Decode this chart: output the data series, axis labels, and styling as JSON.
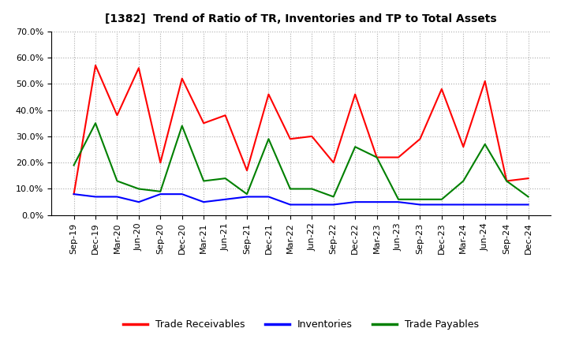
{
  "title": "[1382]  Trend of Ratio of TR, Inventories and TP to Total Assets",
  "x_labels": [
    "Sep-19",
    "Dec-19",
    "Mar-20",
    "Jun-20",
    "Sep-20",
    "Dec-20",
    "Mar-21",
    "Jun-21",
    "Sep-21",
    "Dec-21",
    "Mar-22",
    "Jun-22",
    "Sep-22",
    "Dec-22",
    "Mar-23",
    "Jun-23",
    "Sep-23",
    "Dec-23",
    "Mar-24",
    "Jun-24",
    "Sep-24",
    "Dec-24"
  ],
  "trade_receivables": [
    0.08,
    0.57,
    0.38,
    0.56,
    0.2,
    0.52,
    0.35,
    0.38,
    0.17,
    0.46,
    0.29,
    0.3,
    0.2,
    0.46,
    0.22,
    0.22,
    0.29,
    0.48,
    0.26,
    0.51,
    0.13,
    0.14
  ],
  "inventories": [
    0.08,
    0.07,
    0.07,
    0.05,
    0.08,
    0.08,
    0.05,
    0.06,
    0.07,
    0.07,
    0.04,
    0.04,
    0.04,
    0.05,
    0.05,
    0.05,
    0.04,
    0.04,
    0.04,
    0.04,
    0.04,
    0.04
  ],
  "trade_payables": [
    0.19,
    0.35,
    0.13,
    0.1,
    0.09,
    0.34,
    0.13,
    0.14,
    0.08,
    0.29,
    0.1,
    0.1,
    0.07,
    0.26,
    0.22,
    0.06,
    0.06,
    0.06,
    0.13,
    0.27,
    0.13,
    0.07
  ],
  "ylim": [
    0.0,
    0.7
  ],
  "yticks": [
    0.0,
    0.1,
    0.2,
    0.3,
    0.4,
    0.5,
    0.6,
    0.7
  ],
  "line_color_tr": "#FF0000",
  "line_color_inv": "#0000FF",
  "line_color_tp": "#008000",
  "bg_color": "#FFFFFF",
  "plot_bg_color": "#FFFFFF",
  "grid_color": "#AAAAAA",
  "legend_labels": [
    "Trade Receivables",
    "Inventories",
    "Trade Payables"
  ]
}
